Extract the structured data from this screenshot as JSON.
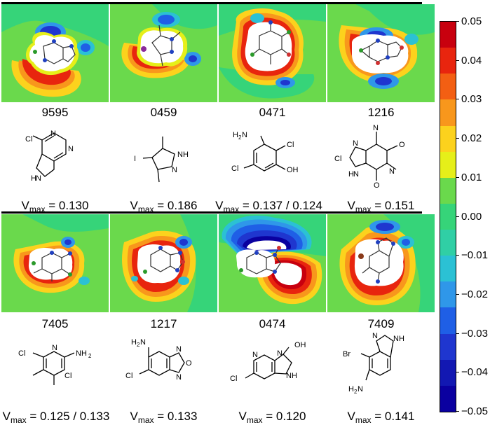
{
  "colorbar": {
    "ticks": [
      "0.05",
      "0.04",
      "0.03",
      "0.02",
      "0.01",
      "0.00",
      "−0.01",
      "−0.02",
      "−0.03",
      "−0.04",
      "−0.05"
    ],
    "colors": [
      "#c8000e",
      "#e8250e",
      "#f35f13",
      "#f8971c",
      "#fcd21d",
      "#e6ef19",
      "#6ad94c",
      "#36d479",
      "#30cfa5",
      "#2bc1d4",
      "#2f97e9",
      "#1f5fe6",
      "#1f36cf",
      "#1218b2",
      "#0a00a0"
    ]
  },
  "molecules": [
    {
      "code": "9595",
      "vmax_label": "V",
      "vmax_sub": "max",
      "vmax_value": " = 0.130",
      "atoms": {
        "a1": "N",
        "a2": "N",
        "a3": "Cl",
        "a4": "H",
        "a5": "N"
      }
    },
    {
      "code": "0459",
      "vmax_label": "V",
      "vmax_sub": "max",
      "vmax_value": " = 0.186",
      "atoms": {
        "a1": "I",
        "a2": "N",
        "a3": "H",
        "a4": "N"
      }
    },
    {
      "code": "0471",
      "vmax_label": "V",
      "vmax_sub": "max",
      "vmax_value": " = 0.137 / 0.124",
      "atoms": {
        "a1": "H",
        "a2": "2",
        "a3": "N",
        "a4": "Cl",
        "a5": "Cl",
        "a6": "OH"
      }
    },
    {
      "code": "1216",
      "vmax_label": "V",
      "vmax_sub": "max",
      "vmax_value": " = 0.151",
      "atoms": {
        "a1": "N",
        "a2": "N",
        "a3": "O",
        "a4": "N",
        "a5": "Cl",
        "a6": "H",
        "a7": "N",
        "a8": "O"
      }
    },
    {
      "code": "7405",
      "vmax_label": "V",
      "vmax_sub": "max",
      "vmax_value": " = 0.125 / 0.133",
      "atoms": {
        "a1": "N",
        "a2": "Cl",
        "a3": "NH",
        "a4": "2",
        "a5": "Cl"
      }
    },
    {
      "code": "1217",
      "vmax_label": "V",
      "vmax_sub": "max",
      "vmax_value": " = 0.133",
      "atoms": {
        "a1": "H",
        "a2": "2",
        "a3": "N",
        "a4": "N",
        "a5": "O",
        "a6": "N",
        "a7": "Cl"
      }
    },
    {
      "code": "0474",
      "vmax_label": "V",
      "vmax_sub": "max",
      "vmax_value": " = 0.120",
      "atoms": {
        "a1": "N",
        "a2": "OH",
        "a3": "N",
        "a4": "Cl",
        "a5": "NH"
      }
    },
    {
      "code": "7409",
      "vmax_label": "V",
      "vmax_sub": "max",
      "vmax_value": " = 0.141",
      "atoms": {
        "a1": "N",
        "a2": "NH",
        "a3": "Br",
        "a4": "H",
        "a5": "2",
        "a6": "N"
      }
    }
  ]
}
